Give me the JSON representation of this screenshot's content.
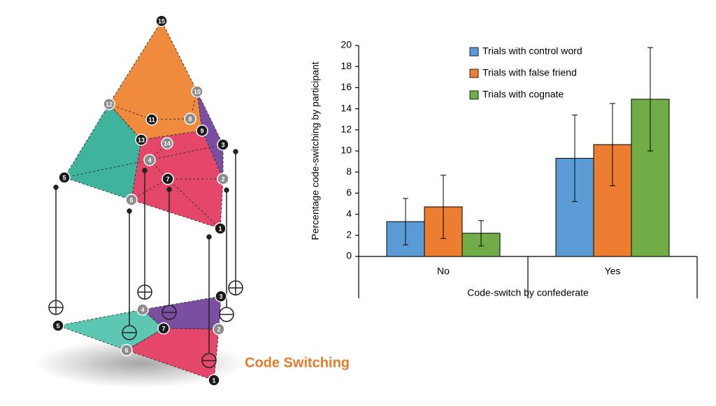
{
  "chart_data": {
    "type": "bar",
    "y_label": "Percentage code-switching by participant",
    "x_label": "Code-switch by confederate",
    "categories": [
      "No",
      "Yes"
    ],
    "series": [
      {
        "name": "Trials with control word",
        "color": "#5b9bd5",
        "values": [
          3.3,
          9.3
        ],
        "errors": [
          2.2,
          4.1
        ]
      },
      {
        "name": "Trials with false friend",
        "color": "#ed7d31",
        "values": [
          4.7,
          10.6
        ],
        "errors": [
          3.0,
          3.9
        ]
      },
      {
        "name": "Trials with cognate",
        "color": "#70ad47",
        "values": [
          2.2,
          14.9
        ],
        "errors": [
          1.2,
          4.9
        ]
      }
    ],
    "ylim": [
      0,
      20
    ],
    "yticks": [
      0,
      2,
      4,
      6,
      8,
      10,
      12,
      14,
      16,
      18,
      20
    ]
  },
  "diagram": {
    "upper_nodes": [
      "15",
      "12",
      "10",
      "11",
      "8",
      "9",
      "13",
      "14",
      "3",
      "4",
      "5",
      "7",
      "2",
      "6",
      "1"
    ],
    "lower_nodes": [
      "3",
      "4",
      "5",
      "7",
      "2",
      "6",
      "1"
    ]
  },
  "caption": "Code Switching"
}
